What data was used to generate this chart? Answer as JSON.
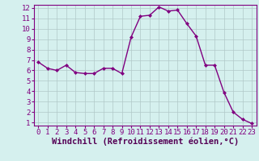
{
  "x": [
    0,
    1,
    2,
    3,
    4,
    5,
    6,
    7,
    8,
    9,
    10,
    11,
    12,
    13,
    14,
    15,
    16,
    17,
    18,
    19,
    20,
    21,
    22,
    23
  ],
  "y": [
    6.8,
    6.2,
    6.0,
    6.5,
    5.8,
    5.7,
    5.7,
    6.2,
    6.2,
    5.7,
    9.2,
    11.2,
    11.3,
    12.1,
    11.7,
    11.8,
    10.5,
    9.3,
    6.5,
    6.5,
    3.9,
    2.0,
    1.3,
    0.9
  ],
  "line_color": "#800080",
  "marker": "D",
  "marker_size": 2.0,
  "bg_color": "#d5f0ee",
  "grid_color": "#b0c8c8",
  "xlabel": "Windchill (Refroidissement éolien,°C)",
  "xlabel_fontsize": 7.5,
  "ylim_min": 0.7,
  "ylim_max": 12.3,
  "xlim_min": -0.5,
  "xlim_max": 23.5,
  "yticks": [
    1,
    2,
    3,
    4,
    5,
    6,
    7,
    8,
    9,
    10,
    11,
    12
  ],
  "xticks": [
    0,
    1,
    2,
    3,
    4,
    5,
    6,
    7,
    8,
    9,
    10,
    11,
    12,
    13,
    14,
    15,
    16,
    17,
    18,
    19,
    20,
    21,
    22,
    23
  ],
  "tick_fontsize": 6.5,
  "line_width": 1.0,
  "xlabel_color": "#550055",
  "spine_color": "#800080"
}
